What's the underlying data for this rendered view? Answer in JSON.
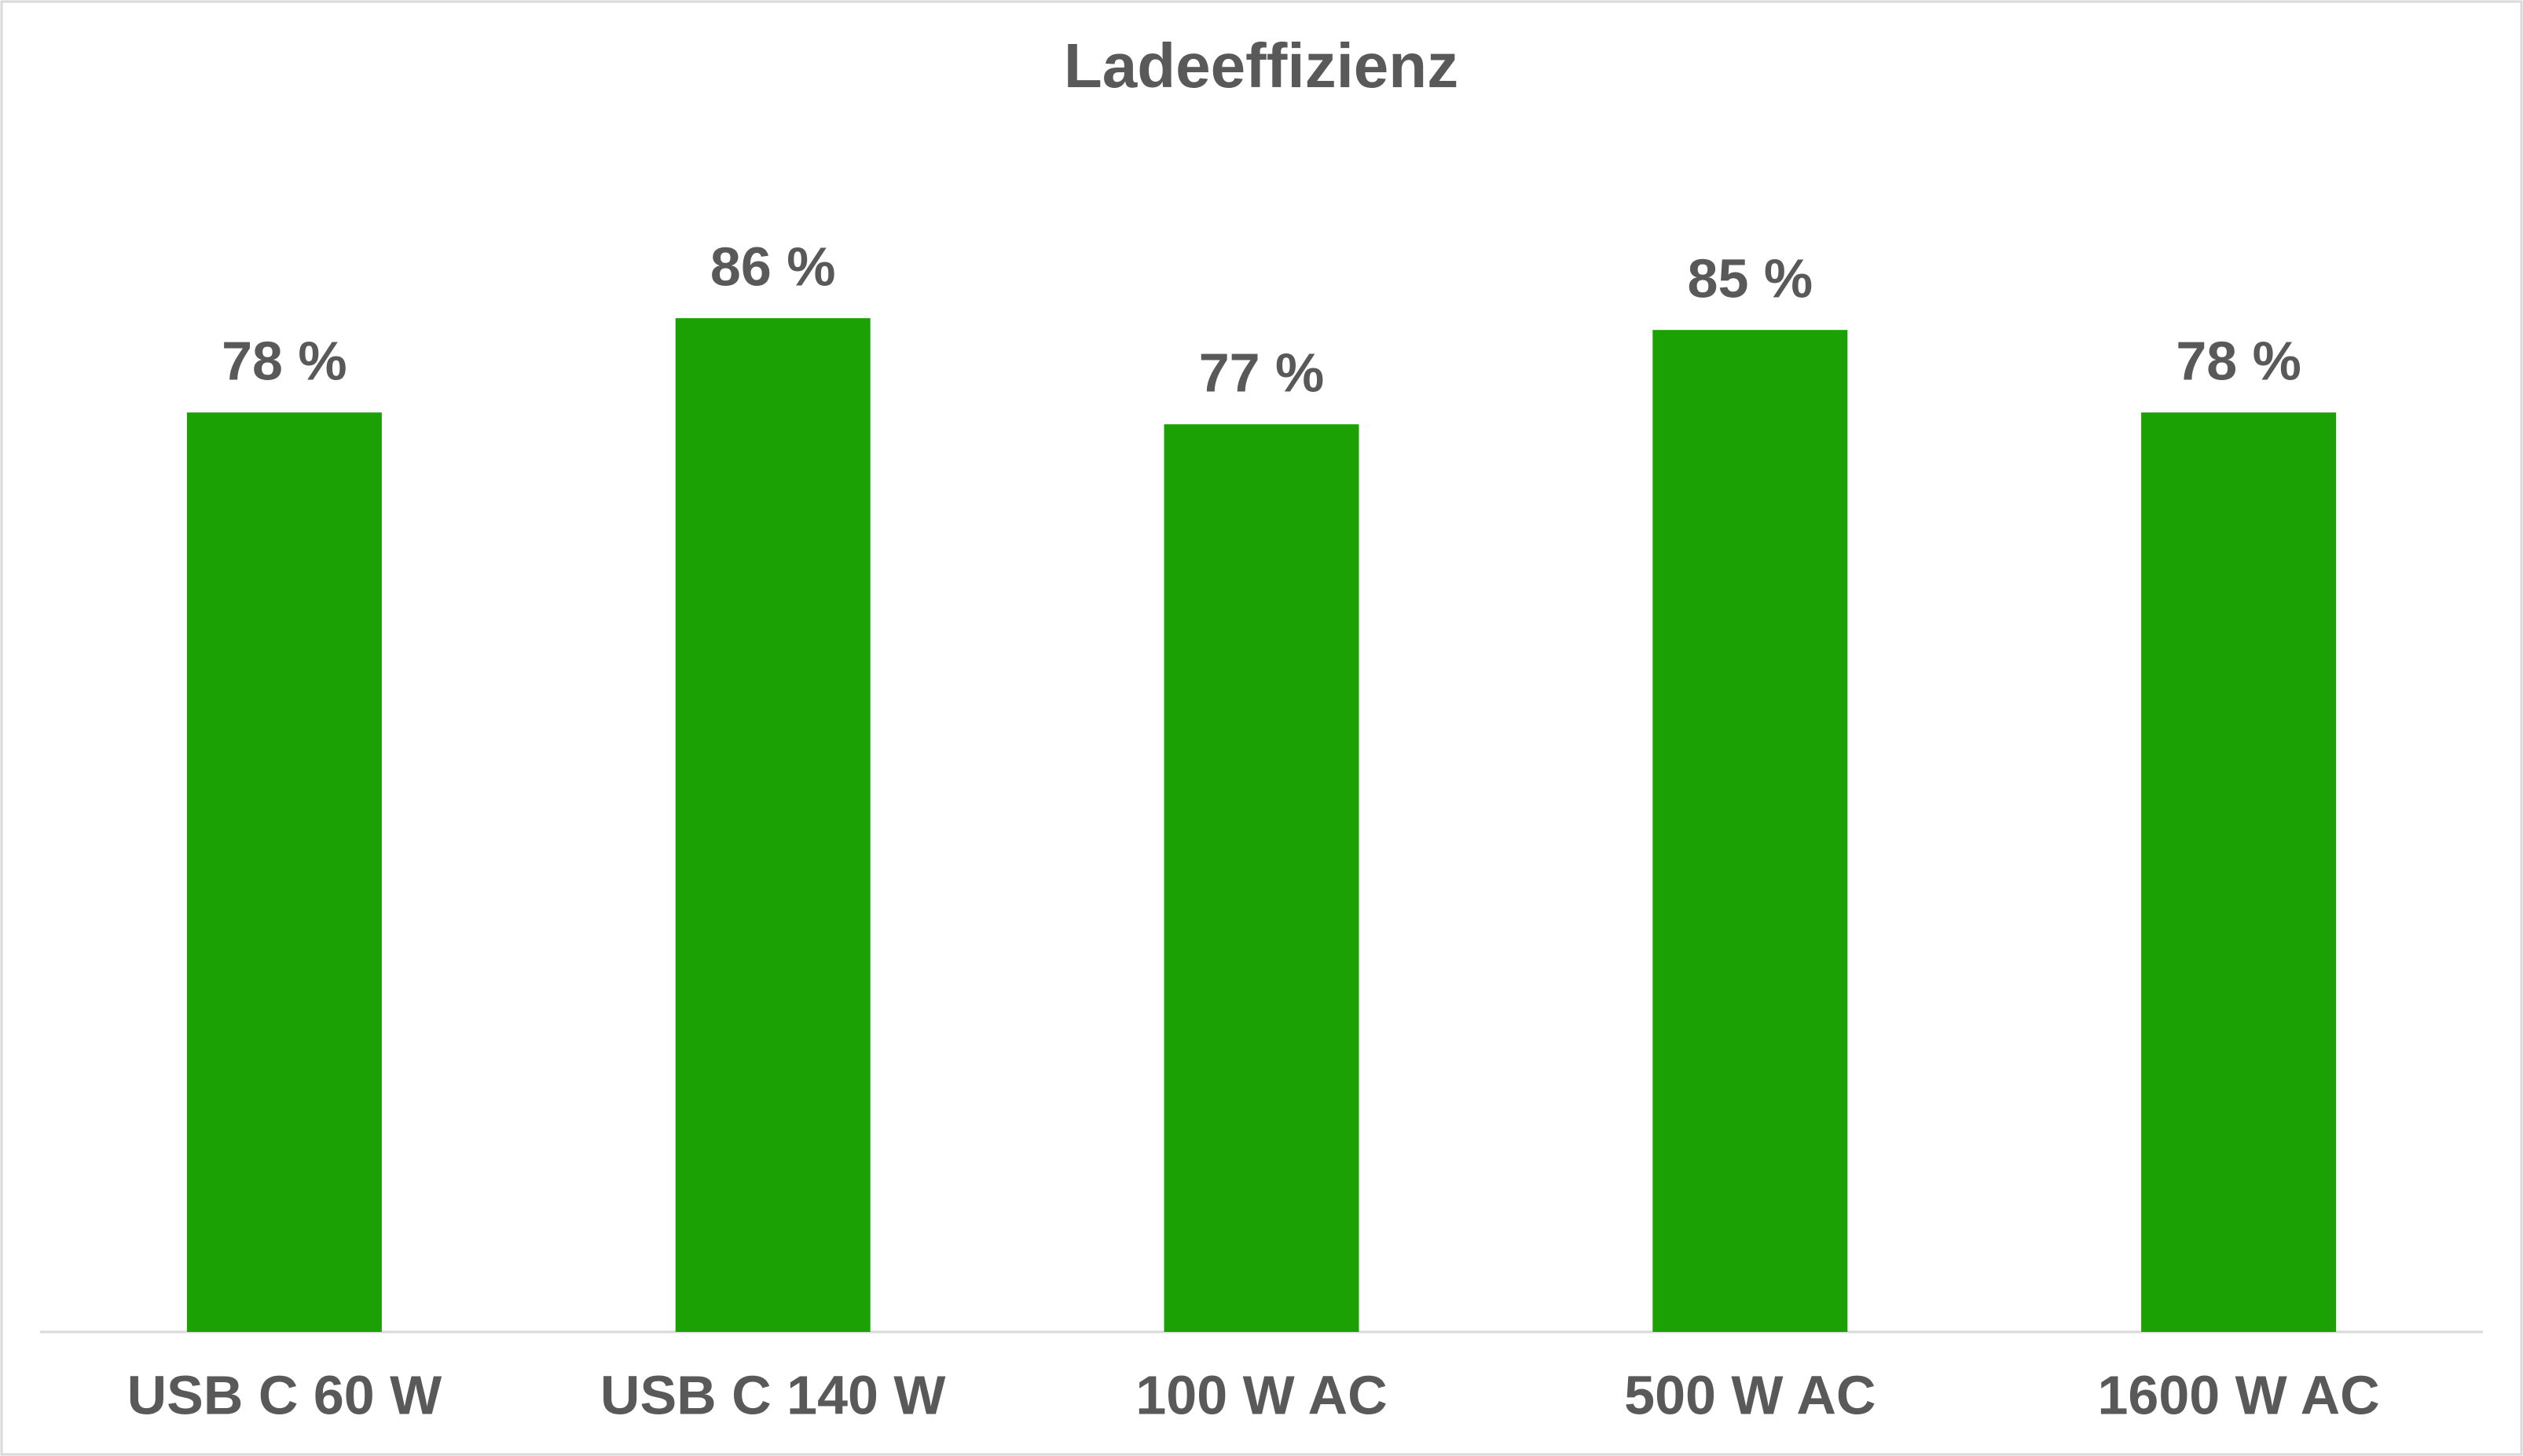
{
  "chart_data": {
    "type": "bar",
    "title": "Ladeeffizienz",
    "categories": [
      "USB C 60 W",
      "USB C 140 W",
      "100 W AC",
      "500 W AC",
      "1600 W AC"
    ],
    "values": [
      78,
      86,
      77,
      85,
      78
    ],
    "value_labels": [
      "78 %",
      "86 %",
      "77 %",
      "85 %",
      "78 %"
    ],
    "color": "#1ca104"
  }
}
